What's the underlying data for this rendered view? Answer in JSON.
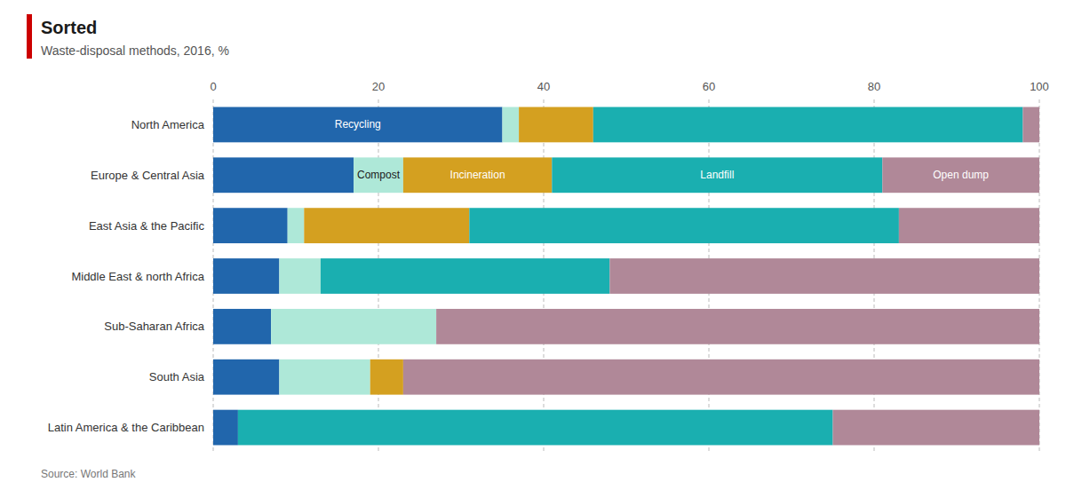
{
  "chart_data": {
    "type": "bar",
    "orientation": "horizontal",
    "stacked": true,
    "title": "Sorted",
    "subtitle": "Waste-disposal methods, 2016, %",
    "source": "Source: World Bank",
    "categories": [
      "North America",
      "Europe & Central Asia",
      "East Asia & the Pacific",
      "Middle East & north Africa",
      "Sub-Saharan Africa",
      "South Asia",
      "Latin America & the Caribbean"
    ],
    "series": [
      {
        "name": "Recycling",
        "color": "#2166ac",
        "values": [
          35,
          17,
          9,
          8,
          7,
          8,
          3
        ]
      },
      {
        "name": "Compost",
        "color": "#aee8d8",
        "values": [
          2,
          6,
          2,
          5,
          20,
          11,
          0
        ]
      },
      {
        "name": "Incineration",
        "color": "#d4a020",
        "values": [
          9,
          18,
          20,
          0,
          0,
          4,
          0
        ]
      },
      {
        "name": "Landfill",
        "color": "#1aafb0",
        "values": [
          52,
          40,
          52,
          35,
          0,
          0,
          72
        ]
      },
      {
        "name": "Open dump",
        "color": "#b08898",
        "values": [
          2,
          19,
          17,
          52,
          73,
          77,
          25
        ]
      }
    ],
    "annotations": [
      {
        "text": "Recycling",
        "series": "Recycling",
        "category": "North America"
      },
      {
        "text": "Compost",
        "series": "Compost",
        "category": "Europe & Central Asia"
      },
      {
        "text": "Incineration",
        "series": "Incineration",
        "category": "Europe & Central Asia"
      },
      {
        "text": "Landfill",
        "series": "Landfill",
        "category": "Europe & Central Asia"
      },
      {
        "text": "Open dump",
        "series": "Open dump",
        "category": "Europe & Central Asia"
      }
    ],
    "xlim": [
      0,
      100
    ],
    "xticks": [
      0,
      20,
      40,
      60,
      80,
      100
    ],
    "grid": true
  }
}
